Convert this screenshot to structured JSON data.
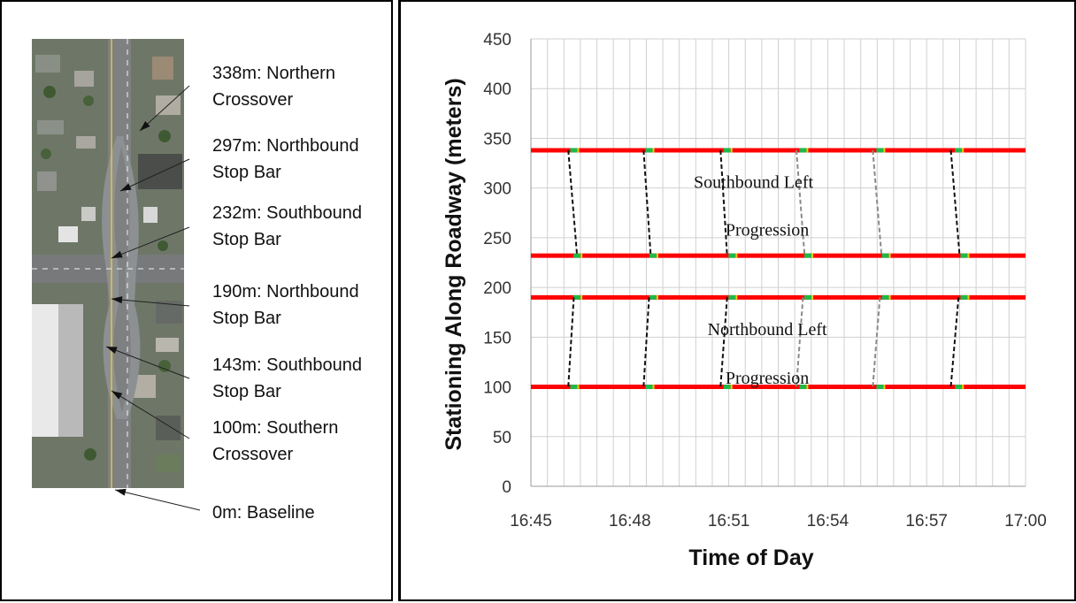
{
  "left_panel": {
    "callouts": [
      {
        "stationing_m": 338,
        "lines": [
          "338m: Northern",
          "Crossover"
        ]
      },
      {
        "stationing_m": 297,
        "lines": [
          "297m: Northbound",
          "Stop Bar"
        ]
      },
      {
        "stationing_m": 232,
        "lines": [
          "232m: Southbound",
          "Stop Bar"
        ]
      },
      {
        "stationing_m": 190,
        "lines": [
          "190m: Northbound",
          "Stop Bar"
        ]
      },
      {
        "stationing_m": 143,
        "lines": [
          "143m: Southbound",
          "Stop Bar"
        ]
      },
      {
        "stationing_m": 100,
        "lines": [
          "100m: Southern",
          "Crossover"
        ]
      },
      {
        "stationing_m": 0,
        "lines": [
          "0m: Baseline"
        ]
      }
    ]
  },
  "colors": {
    "red_phase": "#ff0000",
    "green_phase": "#1fb84a",
    "yellow_phase": "#e8d100",
    "progression_dark": "#111111",
    "progression_light": "#8a8a8a",
    "grid": "#d0d0d0"
  },
  "chart_data": {
    "type": "line",
    "xlabel": "Time of Day",
    "ylabel": "Stationing Along Roadway (meters)",
    "x_ticks": [
      "16:45",
      "16:48",
      "16:51",
      "16:54",
      "16:57",
      "17:00"
    ],
    "xlim": [
      "16:45",
      "17:00"
    ],
    "y_ticks": [
      0,
      50,
      100,
      150,
      200,
      250,
      300,
      350,
      400,
      450
    ],
    "ylim": [
      0,
      450
    ],
    "grid": true,
    "signal_bars": [
      {
        "stationing_m": 338,
        "green_at": [
          "16:46:18",
          "16:48:35",
          "16:50:57",
          "16:53:15",
          "16:55:35",
          "16:57:58"
        ]
      },
      {
        "stationing_m": 232,
        "green_at": [
          "16:46:24",
          "16:48:42",
          "16:51:06",
          "16:53:24",
          "16:55:45",
          "16:58:08"
        ]
      },
      {
        "stationing_m": 190,
        "green_at": [
          "16:46:24",
          "16:48:42",
          "16:51:06",
          "16:53:24",
          "16:55:45",
          "16:58:08"
        ]
      },
      {
        "stationing_m": 100,
        "green_at": [
          "16:46:18",
          "16:48:35",
          "16:50:57",
          "16:53:15",
          "16:55:35",
          "16:57:58"
        ]
      }
    ],
    "series": [
      {
        "color": "dark",
        "points": [
          [
            "16:46:08",
            338
          ],
          [
            "16:46:24",
            232
          ]
        ]
      },
      {
        "color": "dark",
        "points": [
          [
            "16:48:25",
            338
          ],
          [
            "16:48:38",
            232
          ]
        ]
      },
      {
        "color": "dark",
        "points": [
          [
            "16:50:45",
            338
          ],
          [
            "16:50:57",
            232
          ]
        ]
      },
      {
        "color": "light",
        "points": [
          [
            "16:53:03",
            338
          ],
          [
            "16:53:18",
            232
          ]
        ]
      },
      {
        "color": "light",
        "points": [
          [
            "16:55:22",
            338
          ],
          [
            "16:55:38",
            232
          ]
        ]
      },
      {
        "color": "dark",
        "points": [
          [
            "16:57:44",
            338
          ],
          [
            "16:58:00",
            232
          ]
        ]
      },
      {
        "color": "dark",
        "points": [
          [
            "16:46:18",
            190
          ],
          [
            "16:46:08",
            100
          ]
        ]
      },
      {
        "color": "dark",
        "points": [
          [
            "16:48:35",
            190
          ],
          [
            "16:48:25",
            100
          ]
        ]
      },
      {
        "color": "dark",
        "points": [
          [
            "16:50:57",
            190
          ],
          [
            "16:50:45",
            100
          ]
        ]
      },
      {
        "color": "light",
        "points": [
          [
            "16:53:15",
            190
          ],
          [
            "16:53:03",
            100
          ]
        ]
      },
      {
        "color": "light",
        "points": [
          [
            "16:55:35",
            190
          ],
          [
            "16:55:22",
            100
          ]
        ]
      },
      {
        "color": "dark",
        "points": [
          [
            "16:57:58",
            190
          ],
          [
            "16:57:44",
            100
          ]
        ]
      }
    ],
    "annotations": [
      {
        "text": "Southbound Left",
        "x": "16:51:45",
        "y": 300
      },
      {
        "text": "Progression",
        "x": "16:52:10",
        "y": 252
      },
      {
        "text": "Northbound Left",
        "x": "16:52:10",
        "y": 152
      },
      {
        "text": "Progression",
        "x": "16:52:10",
        "y": 103
      }
    ]
  }
}
